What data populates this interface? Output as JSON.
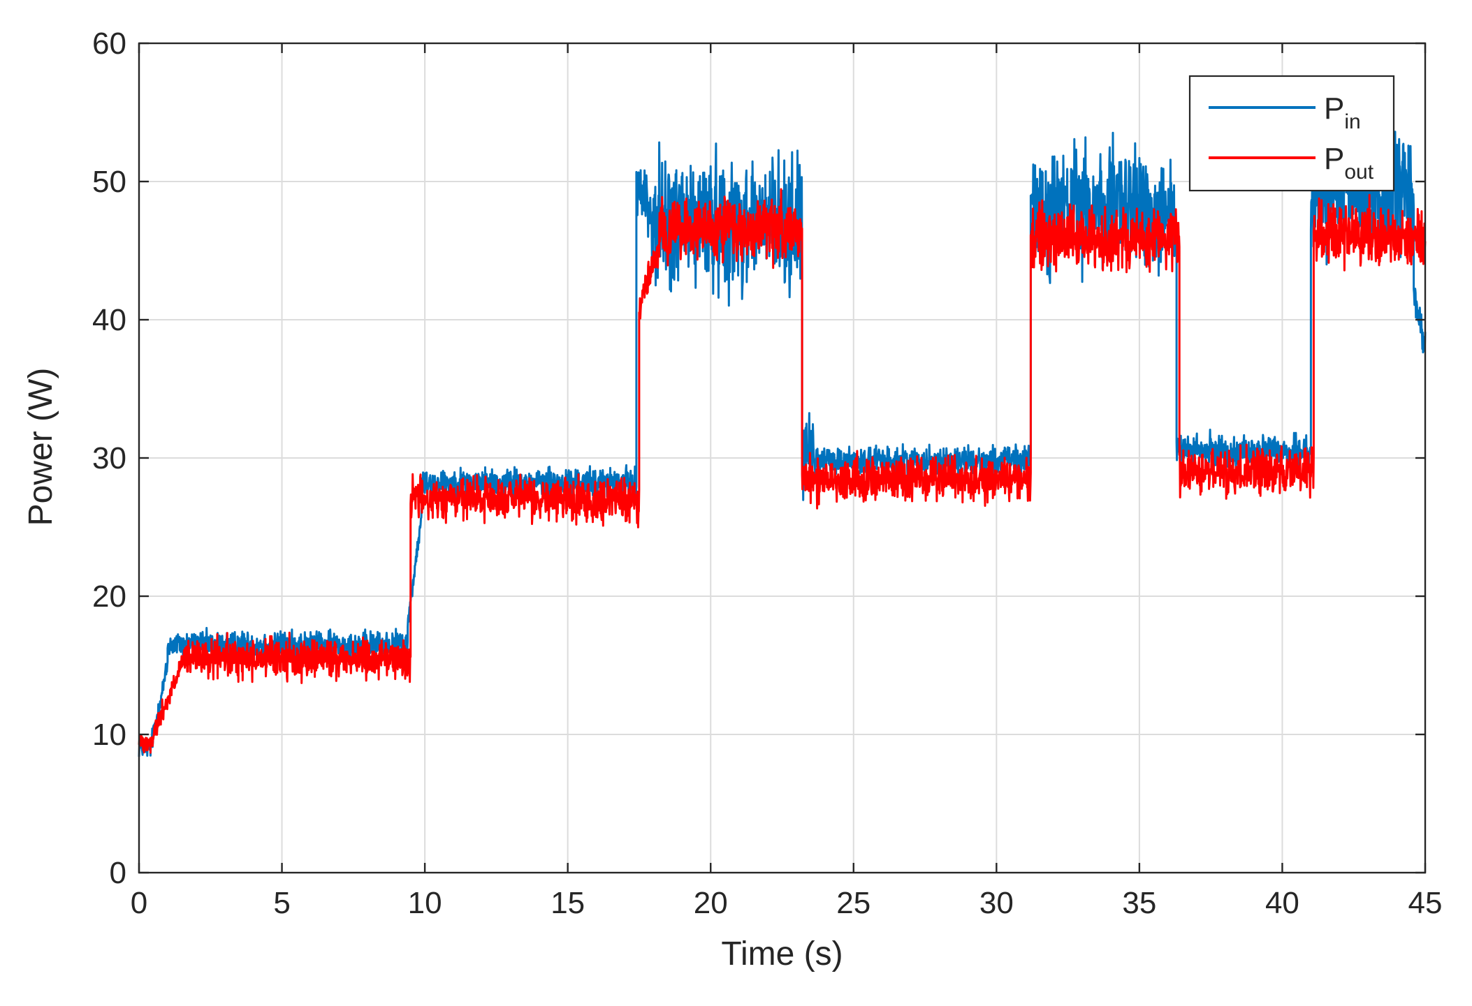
{
  "chart_data": {
    "type": "line",
    "title": "",
    "xlabel": "Time (s)",
    "ylabel": "Power (W)",
    "xlim": [
      0,
      45
    ],
    "ylim": [
      0,
      60
    ],
    "xticks": [
      0,
      5,
      10,
      15,
      20,
      25,
      30,
      35,
      40,
      45
    ],
    "yticks": [
      0,
      10,
      20,
      30,
      40,
      50,
      60
    ],
    "grid": true,
    "legend_position": "top-right",
    "series": [
      {
        "name": "P",
        "subscript": "in",
        "color": "#0072BD",
        "segments": [
          {
            "t0": 0.0,
            "t1": 0.4,
            "v0": 9.0,
            "v1": 9.0,
            "amp": 1.0
          },
          {
            "t0": 0.4,
            "t1": 1.0,
            "v0": 9.0,
            "v1": 15.0,
            "amp": 1.2
          },
          {
            "t0": 1.0,
            "t1": 9.4,
            "v0": 16.5,
            "v1": 16.5,
            "amp": 1.4
          },
          {
            "t0": 9.4,
            "t1": 9.9,
            "v0": 18.0,
            "v1": 26.0,
            "amp": 1.0
          },
          {
            "t0": 9.9,
            "t1": 17.4,
            "v0": 28.2,
            "v1": 28.2,
            "amp": 1.5
          },
          {
            "t0": 17.4,
            "t1": 17.9,
            "v0": 50.0,
            "v1": 48.0,
            "amp": 3.0
          },
          {
            "t0": 17.9,
            "t1": 23.2,
            "v0": 47.0,
            "v1": 47.0,
            "amp": 7.0
          },
          {
            "t0": 23.2,
            "t1": 23.6,
            "v0": 30.0,
            "v1": 30.0,
            "amp": 4.0
          },
          {
            "t0": 23.6,
            "t1": 31.2,
            "v0": 29.8,
            "v1": 29.8,
            "amp": 1.5
          },
          {
            "t0": 31.2,
            "t1": 36.3,
            "v0": 48.0,
            "v1": 48.0,
            "amp": 6.5
          },
          {
            "t0": 36.3,
            "t1": 41.0,
            "v0": 30.5,
            "v1": 30.5,
            "amp": 1.6
          },
          {
            "t0": 41.0,
            "t1": 44.6,
            "v0": 49.0,
            "v1": 49.0,
            "amp": 6.0
          },
          {
            "t0": 44.6,
            "t1": 45.0,
            "v0": 42.0,
            "v1": 38.0,
            "amp": 2.0
          }
        ]
      },
      {
        "name": "P",
        "subscript": "out",
        "color": "#FF0000",
        "segments": [
          {
            "t0": 0.0,
            "t1": 0.5,
            "v0": 9.5,
            "v1": 9.5,
            "amp": 1.0
          },
          {
            "t0": 0.5,
            "t1": 1.6,
            "v0": 10.0,
            "v1": 15.5,
            "amp": 1.2
          },
          {
            "t0": 1.6,
            "t1": 9.5,
            "v0": 15.5,
            "v1": 15.5,
            "amp": 2.0
          },
          {
            "t0": 9.5,
            "t1": 17.5,
            "v0": 27.0,
            "v1": 27.0,
            "amp": 2.3
          },
          {
            "t0": 17.5,
            "t1": 18.2,
            "v0": 41.0,
            "v1": 45.0,
            "amp": 1.5
          },
          {
            "t0": 18.2,
            "t1": 23.2,
            "v0": 46.5,
            "v1": 46.5,
            "amp": 3.2
          },
          {
            "t0": 23.2,
            "t1": 31.2,
            "v0": 28.5,
            "v1": 28.5,
            "amp": 2.3
          },
          {
            "t0": 31.2,
            "t1": 36.4,
            "v0": 46.0,
            "v1": 46.0,
            "amp": 3.0
          },
          {
            "t0": 36.4,
            "t1": 41.1,
            "v0": 29.0,
            "v1": 29.0,
            "amp": 2.5
          },
          {
            "t0": 41.1,
            "t1": 45.0,
            "v0": 46.0,
            "v1": 46.0,
            "amp": 3.2
          }
        ]
      }
    ]
  }
}
